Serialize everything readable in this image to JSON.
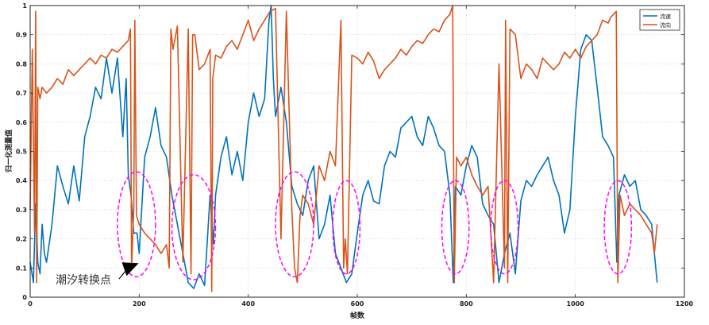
{
  "chart_data": {
    "type": "line",
    "title": "",
    "xlabel": "帧数",
    "ylabel": "归一化测量值",
    "xlim": [
      0,
      1200
    ],
    "ylim": [
      0,
      1
    ],
    "xticks": [
      0,
      200,
      400,
      600,
      800,
      1000,
      1200
    ],
    "yticks": [
      0,
      0.1,
      0.2,
      0.3,
      0.4,
      0.5,
      0.6,
      0.7,
      0.8,
      0.9,
      1
    ],
    "grid": true,
    "legend_position": "top-right",
    "colors": {
      "series1": "#0072BD",
      "series2": "#D95319",
      "highlight": "#FF00FF",
      "arrow": "#000000"
    },
    "series": [
      {
        "name": "流速",
        "x": [
          0,
          6,
          10,
          14,
          18,
          22,
          26,
          30,
          40,
          50,
          60,
          70,
          80,
          90,
          100,
          110,
          120,
          130,
          140,
          150,
          160,
          170,
          176,
          180,
          185,
          190,
          196,
          200,
          210,
          220,
          230,
          240,
          250,
          260,
          270,
          280,
          290,
          300,
          310,
          320,
          330,
          336,
          340,
          350,
          360,
          370,
          380,
          390,
          400,
          410,
          420,
          430,
          438,
          442,
          446,
          450,
          460,
          470,
          480,
          490,
          500,
          510,
          520,
          530,
          540,
          550,
          560,
          570,
          580,
          590,
          600,
          610,
          620,
          630,
          640,
          650,
          660,
          670,
          680,
          690,
          700,
          710,
          720,
          730,
          740,
          750,
          760,
          770,
          776,
          780,
          790,
          800,
          810,
          820,
          830,
          840,
          850,
          860,
          870,
          880,
          890,
          900,
          910,
          920,
          930,
          940,
          950,
          960,
          970,
          980,
          990,
          1000,
          1010,
          1020,
          1030,
          1040,
          1050,
          1060,
          1070,
          1076,
          1080,
          1090,
          1100,
          1110,
          1120,
          1130,
          1140,
          1145,
          1150
        ],
        "y": [
          0.12,
          0.05,
          0.32,
          0.12,
          0.08,
          0.25,
          0.15,
          0.12,
          0.25,
          0.45,
          0.38,
          0.32,
          0.45,
          0.33,
          0.55,
          0.62,
          0.72,
          0.68,
          0.82,
          0.7,
          0.82,
          0.55,
          0.75,
          0.42,
          0.35,
          0.22,
          0.22,
          0.15,
          0.48,
          0.55,
          0.65,
          0.52,
          0.48,
          0.35,
          0.25,
          0.15,
          0.05,
          0.03,
          0.08,
          0.04,
          0.35,
          0.18,
          0.35,
          0.48,
          0.55,
          0.42,
          0.5,
          0.4,
          0.6,
          0.7,
          0.62,
          0.68,
          0.95,
          1.0,
          0.75,
          0.62,
          0.72,
          0.6,
          0.38,
          0.32,
          0.28,
          0.4,
          0.45,
          0.2,
          0.25,
          0.35,
          0.15,
          0.1,
          0.05,
          0.08,
          0.22,
          0.35,
          0.4,
          0.33,
          0.32,
          0.45,
          0.5,
          0.48,
          0.58,
          0.6,
          0.62,
          0.55,
          0.52,
          0.62,
          0.58,
          0.52,
          0.5,
          0.35,
          0.05,
          0.38,
          0.35,
          0.45,
          0.52,
          0.48,
          0.32,
          0.28,
          0.25,
          0.05,
          0.15,
          0.22,
          0.08,
          0.33,
          0.4,
          0.38,
          0.42,
          0.45,
          0.48,
          0.4,
          0.35,
          0.22,
          0.3,
          0.62,
          0.85,
          0.9,
          0.88,
          0.72,
          0.55,
          0.52,
          0.48,
          0.12,
          0.35,
          0.42,
          0.38,
          0.4,
          0.3,
          0.28,
          0.25,
          0.15,
          0.05
        ]
      },
      {
        "name": "流向",
        "x": [
          0,
          4,
          8,
          10,
          12,
          14,
          16,
          18,
          22,
          30,
          40,
          50,
          60,
          70,
          80,
          90,
          100,
          110,
          120,
          130,
          140,
          150,
          160,
          170,
          180,
          184,
          186,
          190,
          192,
          195,
          200,
          210,
          220,
          230,
          240,
          250,
          255,
          258,
          262,
          270,
          280,
          290,
          295,
          298,
          302,
          310,
          320,
          330,
          333,
          335,
          340,
          350,
          360,
          370,
          380,
          390,
          400,
          410,
          420,
          430,
          440,
          450,
          460,
          470,
          480,
          485,
          490,
          495,
          500,
          510,
          520,
          530,
          540,
          550,
          560,
          570,
          575,
          578,
          582,
          590,
          600,
          610,
          620,
          630,
          640,
          650,
          660,
          670,
          680,
          690,
          700,
          710,
          720,
          730,
          740,
          750,
          760,
          770,
          775,
          778,
          782,
          790,
          800,
          810,
          820,
          830,
          840,
          850,
          860,
          870,
          872,
          876,
          880,
          890,
          900,
          910,
          920,
          930,
          940,
          950,
          960,
          970,
          980,
          990,
          1000,
          1010,
          1020,
          1030,
          1040,
          1050,
          1060,
          1065,
          1070,
          1075,
          1078,
          1082,
          1090,
          1100,
          1110,
          1120,
          1130,
          1140,
          1145,
          1150
        ],
        "y": [
          0.3,
          0.85,
          0.22,
          0.98,
          0.05,
          0.72,
          0.7,
          0.68,
          0.72,
          0.7,
          0.72,
          0.75,
          0.73,
          0.78,
          0.76,
          0.78,
          0.8,
          0.82,
          0.8,
          0.83,
          0.82,
          0.85,
          0.84,
          0.86,
          0.88,
          0.92,
          0.1,
          0.3,
          0.95,
          0.28,
          0.25,
          0.22,
          0.2,
          0.18,
          0.15,
          0.18,
          0.1,
          0.92,
          0.85,
          0.93,
          0.12,
          0.92,
          0.08,
          0.9,
          0.9,
          0.78,
          0.8,
          0.85,
          0.02,
          0.75,
          0.83,
          0.82,
          0.86,
          0.88,
          0.85,
          0.9,
          0.95,
          0.88,
          0.92,
          0.95,
          0.98,
          0.99,
          0.2,
          0.98,
          0.3,
          0.1,
          0.05,
          0.28,
          0.35,
          0.32,
          0.25,
          0.45,
          0.4,
          0.5,
          0.45,
          0.95,
          0.1,
          0.2,
          0.08,
          0.83,
          0.82,
          0.8,
          0.84,
          0.81,
          0.75,
          0.78,
          0.8,
          0.82,
          0.85,
          0.83,
          0.86,
          0.88,
          0.87,
          0.9,
          0.92,
          0.91,
          0.95,
          0.97,
          1.0,
          0.05,
          0.48,
          0.45,
          0.48,
          0.42,
          0.38,
          0.35,
          0.38,
          0.05,
          0.8,
          0.1,
          0.95,
          0.05,
          0.92,
          0.9,
          0.75,
          0.8,
          0.78,
          0.75,
          0.82,
          0.8,
          0.78,
          0.8,
          0.84,
          0.82,
          0.85,
          0.82,
          0.86,
          0.88,
          0.9,
          0.95,
          0.94,
          0.96,
          0.97,
          0.98,
          0.05,
          0.35,
          0.28,
          0.32,
          0.3,
          0.28,
          0.25,
          0.22,
          0.15,
          0.25
        ]
      }
    ],
    "highlight_regions": [
      {
        "cx": 195,
        "cy": 0.25,
        "rx": 35,
        "ry": 0.18
      },
      {
        "cx": 300,
        "cy": 0.24,
        "rx": 40,
        "ry": 0.18
      },
      {
        "cx": 485,
        "cy": 0.25,
        "rx": 35,
        "ry": 0.18
      },
      {
        "cx": 580,
        "cy": 0.24,
        "rx": 25,
        "ry": 0.16
      },
      {
        "cx": 780,
        "cy": 0.24,
        "rx": 25,
        "ry": 0.16
      },
      {
        "cx": 870,
        "cy": 0.24,
        "rx": 25,
        "ry": 0.16
      },
      {
        "cx": 1078,
        "cy": 0.24,
        "rx": 25,
        "ry": 0.16
      }
    ],
    "annotations": [
      {
        "text": "潮汐转换点",
        "x": 48,
        "y": 0.05,
        "arrow_to": [
          260,
          0.1
        ]
      }
    ]
  }
}
